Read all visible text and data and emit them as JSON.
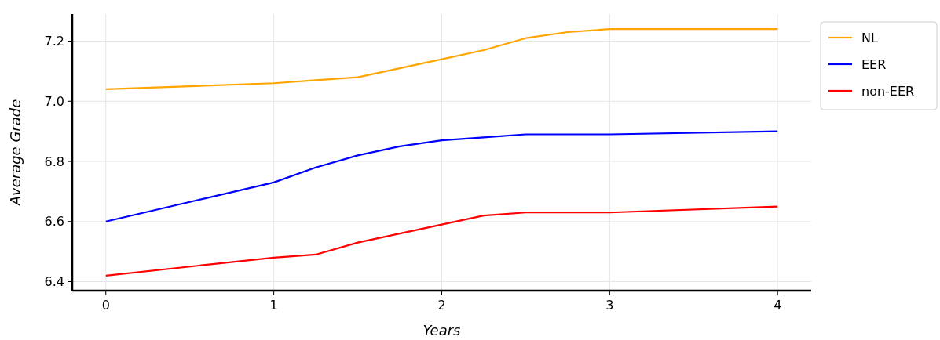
{
  "chart_data": {
    "type": "line",
    "xlabel": "Years",
    "ylabel": "Average Grade",
    "xlim": [
      -0.2,
      4.2
    ],
    "ylim": [
      6.37,
      7.29
    ],
    "xticks": [
      0,
      1,
      2,
      3,
      4
    ],
    "yticks": [
      {
        "value": 6.4,
        "label": "6.4"
      },
      {
        "value": 6.6,
        "label": "6.6"
      },
      {
        "value": 6.8,
        "label": "6.8"
      },
      {
        "value": 7,
        "label": "7.0"
      },
      {
        "value": 7.2,
        "label": "7.2"
      }
    ],
    "grid": true,
    "legend": "top right",
    "line_style": "solid",
    "series": [
      {
        "name": "NL",
        "color": "#ffa500",
        "x": [
          0,
          1,
          1.25,
          1.5,
          1.75,
          2,
          2.25,
          2.5,
          2.75,
          3,
          4
        ],
        "values": [
          7.04,
          7.06,
          7.07,
          7.08,
          7.11,
          7.14,
          7.17,
          7.21,
          7.23,
          7.24,
          7.24
        ]
      },
      {
        "name": "EER",
        "color": "#0000ff",
        "x": [
          0,
          1,
          1.25,
          1.5,
          1.75,
          2,
          2.25,
          2.5,
          2.75,
          3,
          4
        ],
        "values": [
          6.6,
          6.73,
          6.78,
          6.82,
          6.85,
          6.87,
          6.88,
          6.89,
          6.89,
          6.89,
          6.9
        ]
      },
      {
        "name": "non-EER",
        "color": "#ff0000",
        "x": [
          0,
          1,
          1.25,
          1.5,
          1.75,
          2,
          2.25,
          2.5,
          3,
          4
        ],
        "values": [
          6.42,
          6.48,
          6.49,
          6.53,
          6.56,
          6.59,
          6.62,
          6.63,
          6.63,
          6.65
        ]
      }
    ]
  }
}
